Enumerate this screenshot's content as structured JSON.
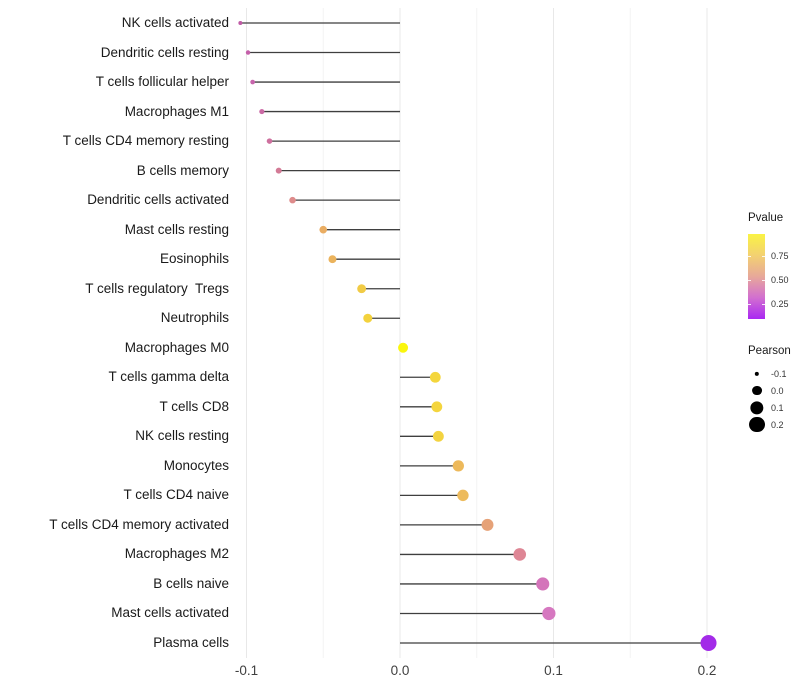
{
  "chart_data": {
    "type": "scatter",
    "variant": "lollipop",
    "orientation": "horizontal",
    "title": "",
    "xlabel": "",
    "ylabel": "",
    "xlim": [
      -0.13,
      0.25
    ],
    "x_ticks": [
      "-0.1",
      "0.0",
      "0.1",
      "0.2"
    ],
    "x_tick_values": [
      -0.1,
      0.0,
      0.1,
      0.2
    ],
    "x_minor_tick_values": [
      -0.05,
      0.05,
      0.15
    ],
    "grid": true,
    "baseline": 0.0,
    "points": [
      {
        "label": "NK cells activated",
        "pearson": -0.104,
        "color": "#C05BA6"
      },
      {
        "label": "Dendritic cells resting",
        "pearson": -0.099,
        "color": "#C45FA9"
      },
      {
        "label": "T cells follicular helper",
        "pearson": -0.096,
        "color": "#C765AC"
      },
      {
        "label": "Macrophages M1",
        "pearson": -0.09,
        "color": "#CB6AA5"
      },
      {
        "label": "T cells CD4 memory resting",
        "pearson": -0.085,
        "color": "#CE709E"
      },
      {
        "label": "B cells memory",
        "pearson": -0.079,
        "color": "#D37A96"
      },
      {
        "label": "Dendritic cells activated",
        "pearson": -0.07,
        "color": "#DE8B8B"
      },
      {
        "label": "Mast cells resting",
        "pearson": -0.05,
        "color": "#EAAD62"
      },
      {
        "label": "Eosinophils",
        "pearson": -0.044,
        "color": "#EBB35C"
      },
      {
        "label": "T cells regulatory  Tregs",
        "pearson": -0.025,
        "color": "#F1CB45"
      },
      {
        "label": "Neutrophils",
        "pearson": -0.021,
        "color": "#F3D23D"
      },
      {
        "label": "Macrophages M0",
        "pearson": 0.002,
        "color": "#FAF60D"
      },
      {
        "label": "T cells gamma delta",
        "pearson": 0.023,
        "color": "#F4D63C"
      },
      {
        "label": "T cells CD8",
        "pearson": 0.024,
        "color": "#F4D53E"
      },
      {
        "label": "NK cells resting",
        "pearson": 0.025,
        "color": "#F3D340"
      },
      {
        "label": "Monocytes",
        "pearson": 0.038,
        "color": "#EDB95B"
      },
      {
        "label": "T cells CD4 naive",
        "pearson": 0.041,
        "color": "#EDBB5D"
      },
      {
        "label": "T cells CD4 memory activated",
        "pearson": 0.057,
        "color": "#E6A278"
      },
      {
        "label": "Macrophages M2",
        "pearson": 0.078,
        "color": "#DE8695"
      },
      {
        "label": "B cells naive",
        "pearson": 0.093,
        "color": "#D474BA"
      },
      {
        "label": "Mast cells activated",
        "pearson": 0.097,
        "color": "#D678C0"
      },
      {
        "label": "Plasma cells",
        "pearson": 0.201,
        "color": "#A32BE8"
      }
    ],
    "legend_position": "right",
    "color_legend": {
      "title": "Pvalue",
      "tick_labels": [
        "0.75",
        "0.50",
        "0.25"
      ],
      "gradient_stops": [
        "#FAF344",
        "#F3D171",
        "#E7A89A",
        "#D26FD0",
        "#A928F2"
      ]
    },
    "size_legend": {
      "title": "Pearson",
      "items": [
        {
          "label": "-0.1",
          "value": -0.1
        },
        {
          "label": "0.0",
          "value": 0.0
        },
        {
          "label": "0.1",
          "value": 0.1
        },
        {
          "label": "0.2",
          "value": 0.2
        }
      ]
    },
    "stem_color": "#3F3F3F",
    "major_grid_color": "#E8E8E8",
    "minor_grid_color": "#F3F3F3"
  }
}
